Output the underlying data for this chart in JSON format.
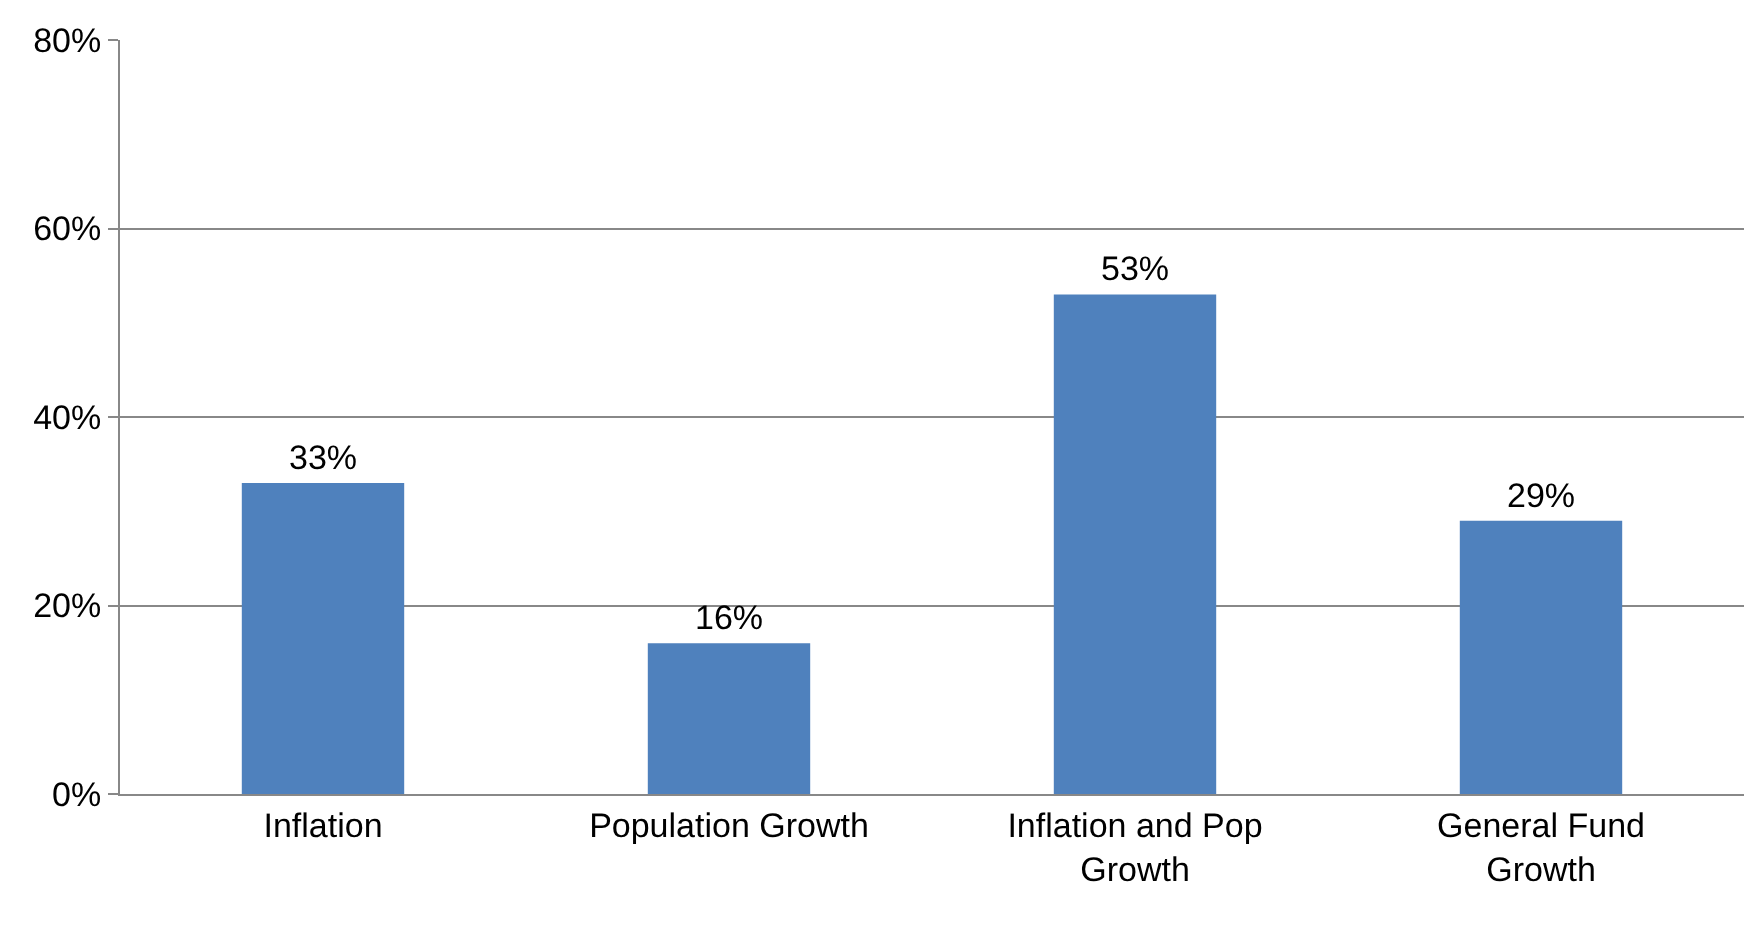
{
  "chart_data": {
    "type": "bar",
    "categories": [
      "Inflation",
      "Population Growth",
      "Inflation and Pop Growth",
      "General Fund Growth"
    ],
    "values": [
      33,
      16,
      53,
      29
    ],
    "value_labels": [
      "33%",
      "16%",
      "53%",
      "29%"
    ],
    "color": "#4f81bd",
    "ylim": [
      0,
      80
    ],
    "yticks": [
      {
        "value": 0,
        "label": "0%"
      },
      {
        "value": 20,
        "label": "20%"
      },
      {
        "value": 40,
        "label": "40%"
      },
      {
        "value": 60,
        "label": "60%"
      },
      {
        "value": 80,
        "label": "80%"
      }
    ],
    "grid": "y"
  }
}
